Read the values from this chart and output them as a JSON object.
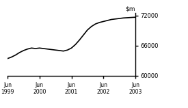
{
  "title": "",
  "ylim": [
    60000,
    72500
  ],
  "yticks": [
    60000,
    66000,
    72000
  ],
  "xtick_labels": [
    "Jun\n1999",
    "Jun\n2000",
    "Jun\n2001",
    "Jun\n2002",
    "Jun\n2003"
  ],
  "xtick_positions": [
    0,
    4,
    8,
    12,
    16
  ],
  "line_color": "#000000",
  "line_width": 1.2,
  "background_color": "#ffffff",
  "x": [
    0,
    0.5,
    1,
    1.5,
    2,
    2.5,
    3,
    3.5,
    4,
    4.5,
    5,
    5.5,
    6,
    6.5,
    7,
    7.5,
    8,
    8.5,
    9,
    9.5,
    10,
    10.5,
    11,
    11.5,
    12,
    12.5,
    13,
    13.5,
    14,
    14.5,
    15,
    15.5,
    16
  ],
  "y": [
    63400,
    63700,
    64100,
    64600,
    65000,
    65300,
    65500,
    65400,
    65500,
    65400,
    65300,
    65200,
    65100,
    65000,
    64900,
    65100,
    65500,
    66200,
    67100,
    68100,
    69100,
    69800,
    70300,
    70600,
    70800,
    71000,
    71200,
    71300,
    71400,
    71500,
    71550,
    71600,
    71650
  ]
}
